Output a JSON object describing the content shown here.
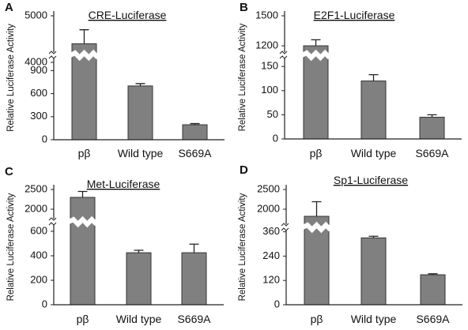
{
  "chart_data": [
    {
      "type": "bar",
      "panel": "A",
      "title": "CRE-Luciferase",
      "ylabel": "Relative Luciferase Activity",
      "categories": [
        "pβ",
        "Wild type",
        "S669A"
      ],
      "axis_break": {
        "lower_ticks": [
          0,
          300,
          600,
          900
        ],
        "upper_ticks": [
          4000,
          5000
        ]
      },
      "series": [
        {
          "values": [
            4400,
            700,
            195
          ],
          "errors": [
            300,
            30,
            15
          ]
        }
      ],
      "grid": false,
      "colors": {
        "bar": "#808080"
      }
    },
    {
      "type": "bar",
      "panel": "B",
      "title": "E2F1-Luciferase",
      "ylabel": "Relative Luciferase Activity",
      "categories": [
        "pβ",
        "Wild type",
        "S669A"
      ],
      "axis_break": {
        "lower_ticks": [
          0,
          50,
          100,
          150
        ],
        "upper_ticks": [
          1200,
          1500
        ]
      },
      "series": [
        {
          "values": [
            1200,
            120,
            45
          ],
          "errors": [
            60,
            13,
            5
          ]
        }
      ],
      "grid": false,
      "colors": {
        "bar": "#808080"
      }
    },
    {
      "type": "bar",
      "panel": "C",
      "title": "Met-Luciferase",
      "ylabel": "Relative Luciferase Activity",
      "categories": [
        "pβ",
        "Wild type",
        "S669A"
      ],
      "axis_break": {
        "lower_ticks": [
          0,
          200,
          400,
          600
        ],
        "upper_ticks": [
          2000,
          2500
        ]
      },
      "series": [
        {
          "values": [
            2300,
            425,
            425
          ],
          "errors": [
            150,
            20,
            70
          ]
        }
      ],
      "grid": false,
      "colors": {
        "bar": "#808080"
      }
    },
    {
      "type": "bar",
      "panel": "D",
      "title": "Sp1-Luciferase",
      "ylabel": "Relative Luciferase Activity",
      "categories": [
        "pβ",
        "Wild type",
        "S669A"
      ],
      "axis_break": {
        "lower_ticks": [
          0,
          120,
          240,
          360
        ],
        "upper_ticks": [
          2000,
          2500
        ]
      },
      "series": [
        {
          "values": [
            1820,
            330,
            148
          ],
          "errors": [
            370,
            8,
            5
          ]
        }
      ],
      "grid": false,
      "colors": {
        "bar": "#808080"
      }
    }
  ]
}
